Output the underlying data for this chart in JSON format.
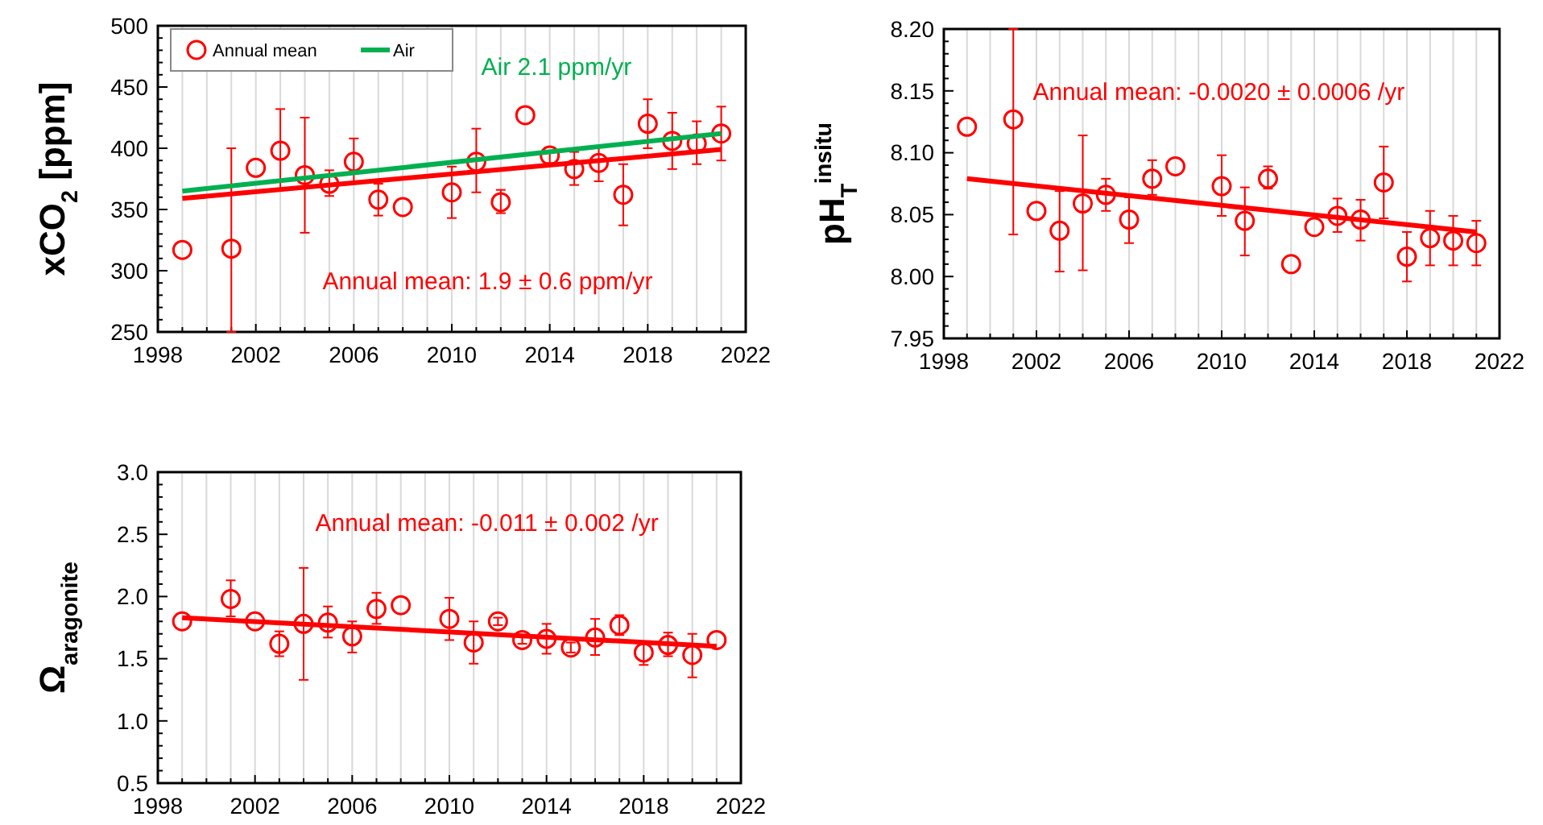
{
  "chart_data": [
    {
      "type": "scatter",
      "ylabel": "xCO$_{2}$ [ppm]",
      "xlim": [
        1998,
        2022
      ],
      "ylim": [
        250,
        500
      ],
      "xticks": [
        1998,
        {
          "value": 1999,
          "label": null
        },
        {
          "value": 2000,
          "label": null
        },
        {
          "value": 2001,
          "label": null
        },
        2002,
        {
          "value": 2003,
          "label": null
        },
        {
          "value": 2004,
          "label": null
        },
        {
          "value": 2005,
          "label": null
        },
        2006,
        {
          "value": 2007,
          "label": null
        },
        {
          "value": 2008,
          "label": null
        },
        {
          "value": 2009,
          "label": null
        },
        2010,
        {
          "value": 2011,
          "label": null
        },
        {
          "value": 2012,
          "label": null
        },
        {
          "value": 2013,
          "label": null
        },
        2014,
        {
          "value": 2015,
          "label": null
        },
        {
          "value": 2016,
          "label": null
        },
        {
          "value": 2017,
          "label": null
        },
        2018,
        {
          "value": 2019,
          "label": null
        },
        {
          "value": 2020,
          "label": null
        },
        {
          "value": 2021,
          "label": null
        },
        2022
      ],
      "yticks": [
        250,
        300,
        350,
        400,
        450,
        500
      ],
      "grid": "x",
      "legend": "top left",
      "annotations": [
        "Air 2.1 ppm/yr",
        "Annual mean: 1.9 ± 0.6 ppm/yr"
      ],
      "series": [
        {
          "name": "Annual mean",
          "marker": "circle",
          "color": "#ff0000",
          "x": [
            1999,
            2001,
            2002,
            2003,
            2004,
            2005,
            2006,
            2007,
            2008,
            2010,
            2011,
            2012,
            2013,
            2014,
            2015,
            2016,
            2017,
            2018,
            2019,
            2020,
            2021
          ],
          "values": [
            317,
            318,
            384,
            398,
            378,
            371,
            389,
            358,
            352,
            364,
            389,
            356,
            427,
            394,
            383,
            388,
            362,
            420,
            406,
            404,
            412
          ],
          "errors": [
            null,
            [
              250,
              400
            ],
            null,
            [
              367,
              432
            ],
            [
              331,
              425
            ],
            [
              361,
              382
            ],
            [
              372,
              408
            ],
            [
              345,
              371
            ],
            null,
            [
              343,
              385
            ],
            [
              364,
              416
            ],
            [
              347,
              366
            ],
            null,
            [
              388,
              398
            ],
            [
              370,
              397
            ],
            [
              373,
              402
            ],
            [
              337,
              387
            ],
            [
              400,
              440
            ],
            [
              383,
              429
            ],
            [
              387,
              422
            ],
            [
              390,
              434
            ]
          ]
        },
        {
          "name": "Air",
          "type": "line",
          "color": "#00b050",
          "x": [
            1999,
            2021
          ],
          "values": [
            365,
            412
          ]
        },
        {
          "type": "line",
          "color": "#ff0000",
          "x": [
            1999,
            2021
          ],
          "values": [
            359,
            399
          ]
        }
      ]
    },
    {
      "type": "scatter",
      "ylabel": "pH$_{T}$$^{insitu}$",
      "xlim": [
        1998,
        2022
      ],
      "ylim": [
        7.95,
        8.2
      ],
      "xticks": [
        1998,
        {
          "value": 1999,
          "label": null
        },
        {
          "value": 2000,
          "label": null
        },
        {
          "value": 2001,
          "label": null
        },
        2002,
        {
          "value": 2003,
          "label": null
        },
        {
          "value": 2004,
          "label": null
        },
        {
          "value": 2005,
          "label": null
        },
        2006,
        {
          "value": 2007,
          "label": null
        },
        {
          "value": 2008,
          "label": null
        },
        {
          "value": 2009,
          "label": null
        },
        2010,
        {
          "value": 2011,
          "label": null
        },
        {
          "value": 2012,
          "label": null
        },
        {
          "value": 2013,
          "label": null
        },
        2014,
        {
          "value": 2015,
          "label": null
        },
        {
          "value": 2016,
          "label": null
        },
        {
          "value": 2017,
          "label": null
        },
        2018,
        {
          "value": 2019,
          "label": null
        },
        {
          "value": 2020,
          "label": null
        },
        {
          "value": 2021,
          "label": null
        },
        2022
      ],
      "yticks": [
        {
          "value": 7.95,
          "label": "7.95"
        },
        {
          "value": 8,
          "label": "8.00"
        },
        {
          "value": 8.05,
          "label": "8.05"
        },
        {
          "value": 8.1,
          "label": "8.10"
        },
        {
          "value": 8.15,
          "label": "8.15"
        },
        {
          "value": 8.2,
          "label": "8.20"
        }
      ],
      "grid": "x",
      "annotations": [
        "Annual mean: -0.0020 ± 0.0006 /yr"
      ],
      "series": [
        {
          "marker": "circle",
          "color": "#ff0000",
          "x": [
            1999,
            2001,
            2002,
            2003,
            2004,
            2005,
            2006,
            2007,
            2008,
            2010,
            2011,
            2012,
            2013,
            2014,
            2015,
            2016,
            2017,
            2018,
            2019,
            2020,
            2021
          ],
          "values": [
            8.121,
            8.127,
            8.053,
            8.037,
            8.059,
            8.066,
            8.046,
            8.079,
            8.089,
            8.073,
            8.045,
            8.079,
            8.01,
            8.04,
            8.049,
            8.046,
            8.076,
            8.016,
            8.031,
            8.029,
            8.027
          ],
          "errors": [
            null,
            [
              8.034,
              8.2
            ],
            null,
            [
              8.004,
              8.069
            ],
            [
              8.005,
              8.114
            ],
            [
              8.053,
              8.079
            ],
            [
              8.027,
              8.064
            ],
            [
              8.066,
              8.094
            ],
            null,
            [
              8.049,
              8.098
            ],
            [
              8.017,
              8.072
            ],
            [
              8.071,
              8.089
            ],
            null,
            null,
            [
              8.036,
              8.063
            ],
            [
              8.029,
              8.062
            ],
            [
              8.047,
              8.105
            ],
            [
              7.996,
              8.036
            ],
            [
              8.009,
              8.053
            ],
            [
              8.009,
              8.049
            ],
            [
              8.009,
              8.045
            ]
          ]
        },
        {
          "type": "line",
          "color": "#ff0000",
          "x": [
            1999,
            2021
          ],
          "values": [
            8.079,
            8.036
          ]
        }
      ]
    },
    {
      "type": "scatter",
      "ylabel": "Ω$_{aragonite}$",
      "xlim": [
        1998,
        2022
      ],
      "ylim": [
        0.5,
        3
      ],
      "xticks": [
        1998,
        {
          "value": 1999,
          "label": null
        },
        {
          "value": 2000,
          "label": null
        },
        {
          "value": 2001,
          "label": null
        },
        2002,
        {
          "value": 2003,
          "label": null
        },
        {
          "value": 2004,
          "label": null
        },
        {
          "value": 2005,
          "label": null
        },
        2006,
        {
          "value": 2007,
          "label": null
        },
        {
          "value": 2008,
          "label": null
        },
        {
          "value": 2009,
          "label": null
        },
        2010,
        {
          "value": 2011,
          "label": null
        },
        {
          "value": 2012,
          "label": null
        },
        {
          "value": 2013,
          "label": null
        },
        2014,
        {
          "value": 2015,
          "label": null
        },
        {
          "value": 2016,
          "label": null
        },
        {
          "value": 2017,
          "label": null
        },
        2018,
        {
          "value": 2019,
          "label": null
        },
        {
          "value": 2020,
          "label": null
        },
        {
          "value": 2021,
          "label": null
        },
        2022
      ],
      "yticks": [
        {
          "value": 0.5,
          "label": "0.5"
        },
        {
          "value": 1,
          "label": "1.0"
        },
        {
          "value": 1.5,
          "label": "1.5"
        },
        {
          "value": 2,
          "label": "2.0"
        },
        {
          "value": 2.5,
          "label": "2.5"
        },
        {
          "value": 3,
          "label": "3.0"
        }
      ],
      "grid": "x",
      "annotations": [
        "Annual mean: -0.011 ± 0.002 /yr"
      ],
      "series": [
        {
          "marker": "circle",
          "color": "#ff0000",
          "x": [
            1999,
            2001,
            2002,
            2003,
            2004,
            2005,
            2006,
            2007,
            2008,
            2010,
            2011,
            2012,
            2013,
            2014,
            2015,
            2016,
            2017,
            2018,
            2019,
            2020,
            2021
          ],
          "values": [
            1.8,
            1.98,
            1.8,
            1.62,
            1.78,
            1.79,
            1.68,
            1.9,
            1.93,
            1.82,
            1.63,
            1.8,
            1.65,
            1.66,
            1.59,
            1.67,
            1.77,
            1.55,
            1.61,
            1.53,
            1.65
          ],
          "errors": [
            null,
            [
              1.84,
              2.13
            ],
            null,
            [
              1.52,
              1.72
            ],
            [
              1.33,
              2.23
            ],
            [
              1.67,
              1.92
            ],
            [
              1.55,
              1.8
            ],
            [
              1.78,
              2.03
            ],
            null,
            [
              1.65,
              1.99
            ],
            [
              1.46,
              1.8
            ],
            [
              1.77,
              1.83
            ],
            [
              1.62,
              1.68
            ],
            [
              1.54,
              1.78
            ],
            [
              1.55,
              1.63
            ],
            [
              1.53,
              1.82
            ],
            [
              1.69,
              1.85
            ],
            [
              1.45,
              1.63
            ],
            [
              1.52,
              1.71
            ],
            [
              1.35,
              1.7
            ],
            null
          ]
        },
        {
          "type": "line",
          "color": "#ff0000",
          "x": [
            1999,
            2021
          ],
          "values": [
            1.83,
            1.6
          ]
        }
      ]
    }
  ]
}
